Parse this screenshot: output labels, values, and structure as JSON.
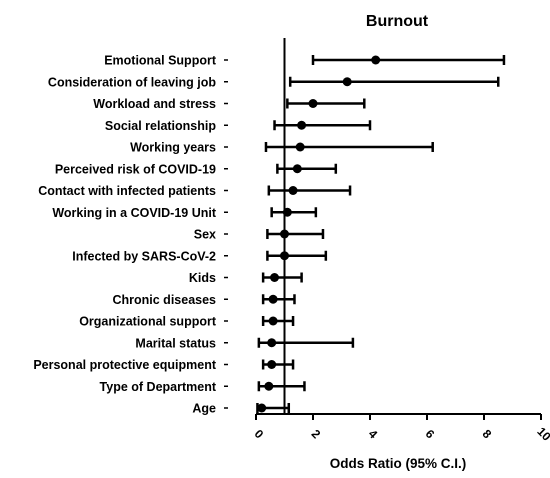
{
  "chart_data": {
    "type": "forest",
    "title": "Burnout",
    "xlabel": "Odds Ratio (95% C.I.)",
    "xlim": [
      0,
      10
    ],
    "xticks": [
      0,
      2,
      4,
      6,
      8,
      10
    ],
    "reference_line": 1,
    "grid": false,
    "rows": [
      {
        "label": "Emotional Support",
        "or": 4.2,
        "lo": 2.0,
        "hi": 8.7
      },
      {
        "label": "Consideration of leaving job",
        "or": 3.2,
        "lo": 1.2,
        "hi": 8.5
      },
      {
        "label": "Workload and stress",
        "or": 2.0,
        "lo": 1.1,
        "hi": 3.8
      },
      {
        "label": "Social relationship",
        "or": 1.6,
        "lo": 0.65,
        "hi": 4.0
      },
      {
        "label": "Working years",
        "or": 1.55,
        "lo": 0.35,
        "hi": 6.2
      },
      {
        "label": "Perceived risk of COVID-19",
        "or": 1.45,
        "lo": 0.75,
        "hi": 2.8
      },
      {
        "label": "Contact with infected patients",
        "or": 1.3,
        "lo": 0.45,
        "hi": 3.3
      },
      {
        "label": "Working in a COVID-19 Unit",
        "or": 1.1,
        "lo": 0.55,
        "hi": 2.1
      },
      {
        "label": "Sex",
        "or": 1.0,
        "lo": 0.4,
        "hi": 2.35
      },
      {
        "label": "Infected by SARS-CoV-2",
        "or": 1.0,
        "lo": 0.4,
        "hi": 2.45
      },
      {
        "label": "Kids",
        "or": 0.65,
        "lo": 0.25,
        "hi": 1.6
      },
      {
        "label": "Chronic diseases",
        "or": 0.6,
        "lo": 0.25,
        "hi": 1.35
      },
      {
        "label": "Organizational support",
        "or": 0.6,
        "lo": 0.25,
        "hi": 1.3
      },
      {
        "label": "Marital status",
        "or": 0.55,
        "lo": 0.1,
        "hi": 3.4
      },
      {
        "label": "Personal protective equipment",
        "or": 0.55,
        "lo": 0.25,
        "hi": 1.3
      },
      {
        "label": "Type of Department",
        "or": 0.45,
        "lo": 0.1,
        "hi": 1.7
      },
      {
        "label": "Age",
        "or": 0.2,
        "lo": 0.05,
        "hi": 1.15
      }
    ]
  }
}
